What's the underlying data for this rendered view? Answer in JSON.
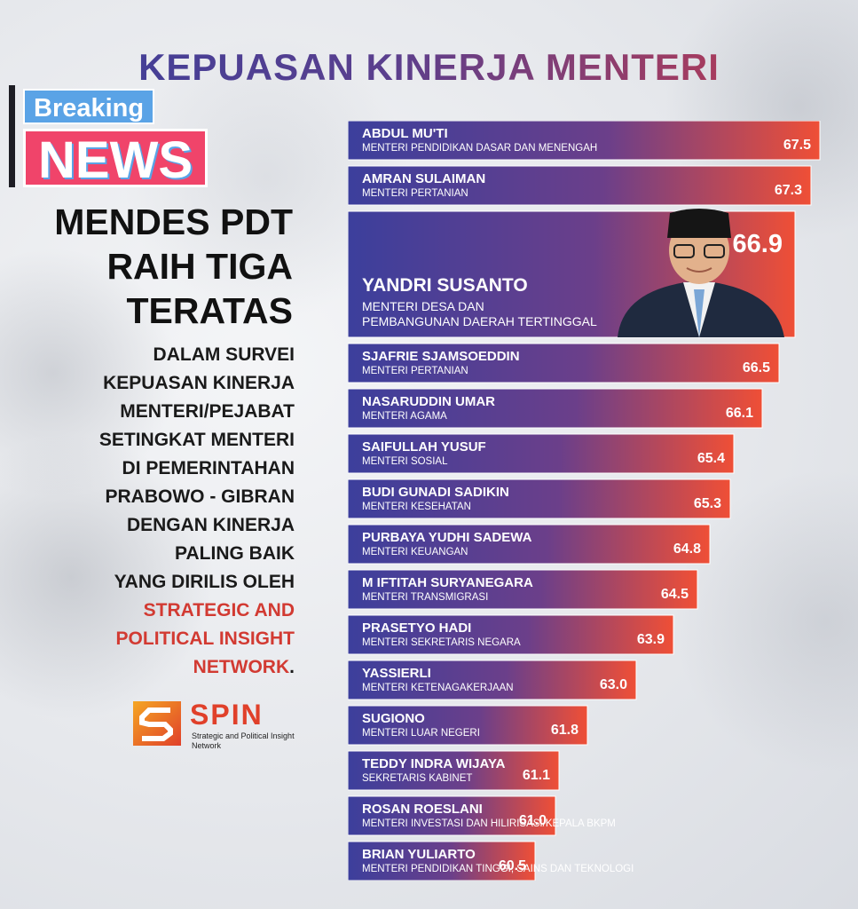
{
  "header": {
    "title": "KEPUASAN KINERJA MENTERI"
  },
  "left_panel": {
    "breaking_label": "Breaking",
    "news_label": "NEWS",
    "headline_lines": [
      "MENDES PDT",
      "RAIH TIGA",
      "TERATAS"
    ],
    "description_lines": [
      "DALAM SURVEI",
      "KEPUASAN KINERJA",
      "MENTERI/PEJABAT",
      "SETINGKAT MENTERI",
      "DI PEMERINTAHAN",
      "PRABOWO - GIBRAN",
      "DENGAN KINERJA",
      "PALING BAIK",
      "YANG DIRILIS OLEH"
    ],
    "highlight_lines": [
      "STRATEGIC AND",
      "POLITICAL INSIGHT",
      "NETWORK"
    ],
    "highlight_end": ".",
    "logo": {
      "icon": "spin-logo-icon",
      "word": "SPIN",
      "subtitle": "Strategic and Political Insight Network"
    }
  },
  "colors": {
    "bar_start": "#3c3f9c",
    "bar_mid": "#6b3f8a",
    "bar_end": "#ef4f36",
    "title_start": "#3a3f9a",
    "title_end": "#c73b4a",
    "breaking": "#5aa3e6",
    "news": "#f0446a",
    "highlight_text": "#d23a32",
    "logo": "#e0402a"
  },
  "chart_data": {
    "type": "bar",
    "orientation": "horizontal",
    "title": "KEPUASAN KINERJA MENTERI",
    "highlighted_index": 2,
    "highlight_icon": "minister-portrait",
    "rows": [
      {
        "name": "ABDUL MU'TI",
        "role": "MENTERI PENDIDIKAN DASAR DAN MENENGAH",
        "value": 67.5
      },
      {
        "name": "AMRAN SULAIMAN",
        "role": "MENTERI PERTANIAN",
        "value": 67.3
      },
      {
        "name": "YANDRI SUSANTO",
        "role_lines": [
          "MENTERI DESA DAN",
          "PEMBANGUNAN DAERAH TERTINGGAL"
        ],
        "value": 66.9
      },
      {
        "name": "SJAFRIE SJAMSOEDDIN",
        "role": "MENTERI PERTANIAN",
        "value": 66.5
      },
      {
        "name": "NASARUDDIN UMAR",
        "role": "MENTERI AGAMA",
        "value": 66.1
      },
      {
        "name": "SAIFULLAH YUSUF",
        "role": "MENTERI SOSIAL",
        "value": 65.4
      },
      {
        "name": "BUDI GUNADI SADIKIN",
        "role": "MENTERI KESEHATAN",
        "value": 65.3
      },
      {
        "name": "PURBAYA YUDHI SADEWA",
        "role": "MENTERI KEUANGAN",
        "value": 64.8
      },
      {
        "name": "M IFTITAH SURYANEGARA",
        "role": "MENTERI TRANSMIGRASI",
        "value": 64.5
      },
      {
        "name": "PRASETYO HADI",
        "role": "MENTERI SEKRETARIS NEGARA",
        "value": 63.9
      },
      {
        "name": "YASSIERLI",
        "role": "MENTERI KETENAGAKERJAAN",
        "value": 63.0
      },
      {
        "name": "SUGIONO",
        "role": "MENTERI LUAR NEGERI",
        "value": 61.8
      },
      {
        "name": "TEDDY INDRA WIJAYA",
        "role": "SEKRETARIS KABINET",
        "value": 61.1
      },
      {
        "name": "ROSAN ROESLANI",
        "role": "MENTERI INVESTASI DAN HILIRISASI/KEPALA BKPM",
        "value": 61.0
      },
      {
        "name": "BRIAN YULIARTO",
        "role": "MENTERI PENDIDIKAN TINGGI, SAINS DAN TEKNOLOGI",
        "value": 60.5
      }
    ]
  }
}
